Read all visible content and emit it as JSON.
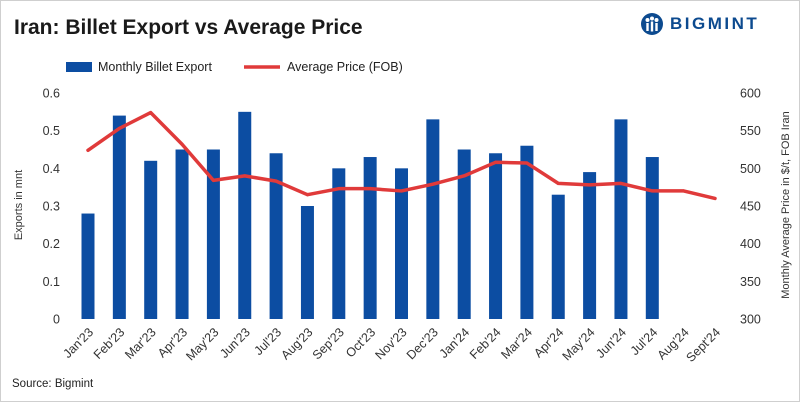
{
  "title": "Iran: Billet Export vs Average Price",
  "brand": {
    "name": "BIGMINT",
    "color": "#0c4a8f"
  },
  "source": "Source: Bigmint",
  "colors": {
    "bar": "#0c4da2",
    "line": "#e03a3a"
  },
  "chart_data": {
    "type": "bar+line",
    "categories": [
      "Jan'23",
      "Feb'23",
      "Mar'23",
      "Apr'23",
      "May'23",
      "Jun'23",
      "Jul'23",
      "Aug'23",
      "Sep'23",
      "Oct'23",
      "Nov'23",
      "Dec'23",
      "Jan'24",
      "Feb'24",
      "Mar'24",
      "Apr'24",
      "May'24",
      "Jun'24",
      "Jul'24",
      "Aug'24",
      "Sept'24"
    ],
    "series": [
      {
        "name": "Monthly Billet Export",
        "type": "bar",
        "axis": "left",
        "values": [
          0.28,
          0.54,
          0.42,
          0.45,
          0.45,
          0.55,
          0.44,
          0.3,
          0.4,
          0.43,
          0.4,
          0.53,
          0.45,
          0.44,
          0.46,
          0.33,
          0.39,
          0.53,
          0.43,
          null,
          null
        ]
      },
      {
        "name": "Average Price (FOB)",
        "type": "line",
        "axis": "right",
        "values": [
          524,
          553,
          574,
          532,
          484,
          490,
          483,
          465,
          473,
          473,
          470,
          479,
          490,
          508,
          507,
          480,
          478,
          480,
          470,
          470,
          460
        ]
      }
    ],
    "ylabel_left": "Exports in mnt",
    "ylabel_right": "Monthly Average Price in $/t, FOB Iran",
    "ylim_left": [
      0,
      0.6
    ],
    "ylim_right": [
      300,
      600
    ],
    "yticks_left": [
      "0",
      "0.1",
      "0.2",
      "0.3",
      "0.4",
      "0.5",
      "0.6"
    ],
    "yticks_right": [
      "300",
      "350",
      "400",
      "450",
      "500",
      "550",
      "600"
    ],
    "legend_position": "top-left",
    "grid": false
  }
}
